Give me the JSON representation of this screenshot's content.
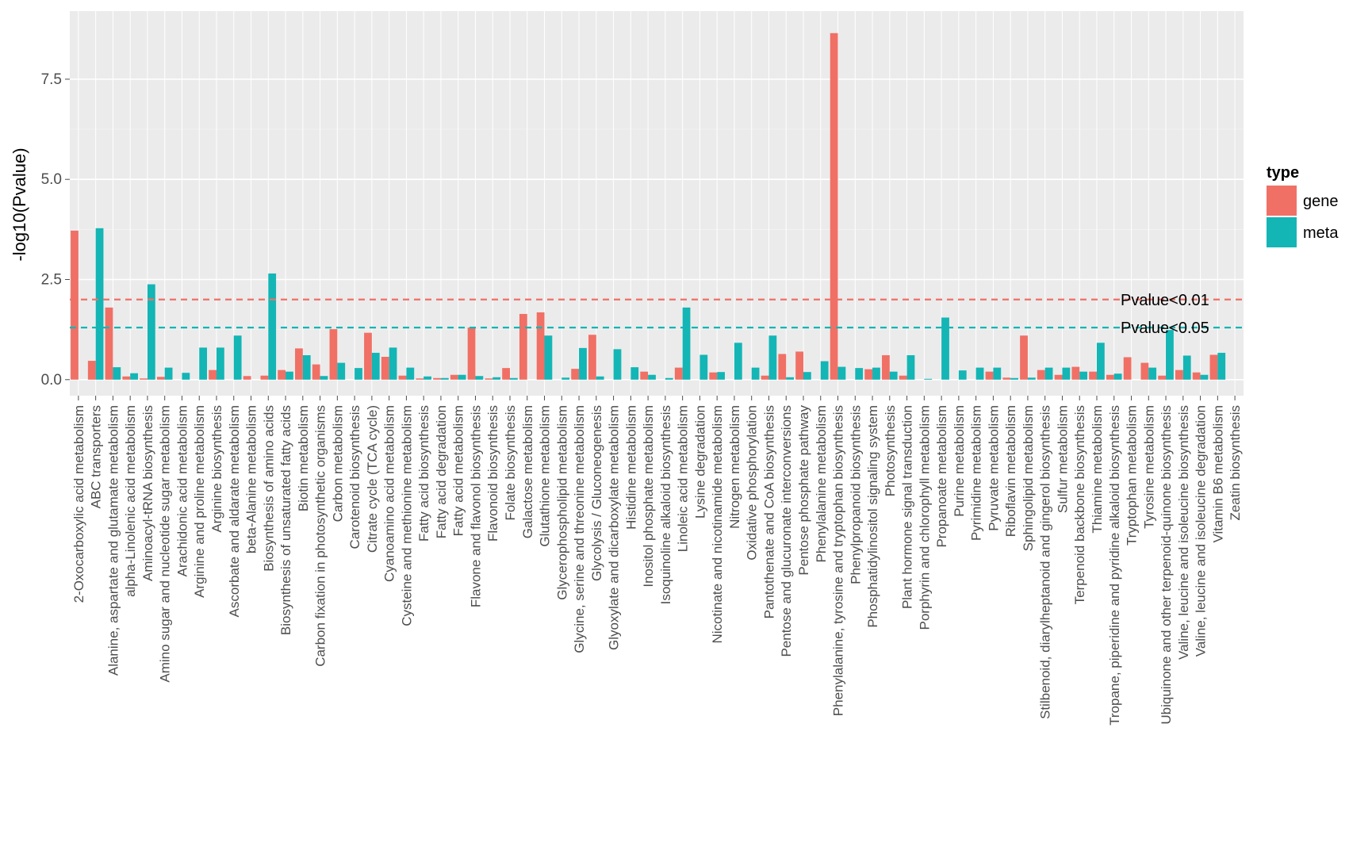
{
  "chart_data": {
    "type": "bar",
    "title": "",
    "xlabel": "",
    "ylabel": "-log10(Pvalue)",
    "ylim": [
      -0.4,
      9.2
    ],
    "yticks": [
      0.0,
      2.5,
      5.0,
      7.5
    ],
    "ytick_labels": [
      "0.0",
      "2.5",
      "5.0",
      "7.5"
    ],
    "legend": {
      "title": "type",
      "position": "right"
    },
    "colors": {
      "gene": "#F07066",
      "meta": "#14B5B5",
      "panel": "#EBEBEB"
    },
    "categories": [
      "2-Oxocarboxylic acid metabolism",
      "ABC transporters",
      "Alanine, aspartate and glutamate metabolism",
      "alpha-Linolenic acid metabolism",
      "Aminoacyl-tRNA biosynthesis",
      "Amino sugar and nucleotide sugar metabolism",
      "Arachidonic acid metabolism",
      "Arginine and proline metabolism",
      "Arginine biosynthesis",
      "Ascorbate and aldarate metabolism",
      "beta-Alanine metabolism",
      "Biosynthesis of amino acids",
      "Biosynthesis of unsaturated fatty acids",
      "Biotin metabolism",
      "Carbon fixation in photosynthetic organisms",
      "Carbon metabolism",
      "Carotenoid biosynthesis",
      "Citrate cycle (TCA cycle)",
      "Cyanoamino acid metabolism",
      "Cysteine and methionine metabolism",
      "Fatty acid biosynthesis",
      "Fatty acid degradation",
      "Fatty acid metabolism",
      "Flavone and flavonol biosynthesis",
      "Flavonoid biosynthesis",
      "Folate biosynthesis",
      "Galactose metabolism",
      "Glutathione metabolism",
      "Glycerophospholipid metabolism",
      "Glycine, serine and threonine metabolism",
      "Glycolysis / Gluconeogenesis",
      "Glyoxylate and dicarboxylate metabolism",
      "Histidine metabolism",
      "Inositol phosphate metabolism",
      "Isoquinoline alkaloid biosynthesis",
      "Linoleic acid metabolism",
      "Lysine degradation",
      "Nicotinate and nicotinamide metabolism",
      "Nitrogen metabolism",
      "Oxidative phosphorylation",
      "Pantothenate and CoA biosynthesis",
      "Pentose and glucuronate interconversions",
      "Pentose phosphate pathway",
      "Phenylalanine metabolism",
      "Phenylalanine, tyrosine and tryptophan biosynthesis",
      "Phenylpropanoid biosynthesis",
      "Phosphatidylinositol signaling system",
      "Photosynthesis",
      "Plant hormone signal transduction",
      "Porphyrin and chlorophyll metabolism",
      "Propanoate metabolism",
      "Purine metabolism",
      "Pyrimidine metabolism",
      "Pyruvate metabolism",
      "Riboflavin metabolism",
      "Sphingolipid metabolism",
      "Stilbenoid, diarylheptanoid and gingerol biosynthesis",
      "Sulfur metabolism",
      "Terpenoid backbone biosynthesis",
      "Thiamine metabolism",
      "Tropane, piperidine and pyridine alkaloid biosynthesis",
      "Tryptophan metabolism",
      "Tyrosine metabolism",
      "Ubiquinone and other terpenoid-quinone biosynthesis",
      "Valine, leucine and isoleucine biosynthesis",
      "Valine, leucine and isoleucine degradation",
      "Vitamin B6 metabolism",
      "Zeatin biosynthesis"
    ],
    "series": [
      {
        "name": "gene",
        "values": [
          3.72,
          0.47,
          1.8,
          0.08,
          0.03,
          0.07,
          0.0,
          0.0,
          0.24,
          0.0,
          0.09,
          0.1,
          0.24,
          0.78,
          0.38,
          1.26,
          0.0,
          1.17,
          0.57,
          0.1,
          0.03,
          0.04,
          0.12,
          1.3,
          0.03,
          0.29,
          1.64,
          1.68,
          0.0,
          0.27,
          1.12,
          0.0,
          0.0,
          0.2,
          0.0,
          0.3,
          0.0,
          0.18,
          0.0,
          0.0,
          0.1,
          0.64,
          0.7,
          0.0,
          8.65,
          0.0,
          0.26,
          0.61,
          0.1,
          0.0,
          0.0,
          0.0,
          0.0,
          0.2,
          0.05,
          1.1,
          0.24,
          0.12,
          0.32,
          0.2,
          0.12,
          0.56,
          0.42,
          0.1,
          0.24,
          0.18,
          0.62,
          0.0
        ]
      },
      {
        "name": "meta",
        "values": [
          0.0,
          3.78,
          0.31,
          0.16,
          2.38,
          0.3,
          0.17,
          0.8,
          0.8,
          1.1,
          0.0,
          2.65,
          0.2,
          0.61,
          0.09,
          0.42,
          0.29,
          0.67,
          0.8,
          0.3,
          0.08,
          0.04,
          0.12,
          0.09,
          0.06,
          0.04,
          0.0,
          1.1,
          0.05,
          0.79,
          0.08,
          0.76,
          0.31,
          0.12,
          0.04,
          1.8,
          0.62,
          0.19,
          0.92,
          0.3,
          1.1,
          0.06,
          0.19,
          0.46,
          0.32,
          0.29,
          0.3,
          0.2,
          0.61,
          0.02,
          1.55,
          0.23,
          0.3,
          0.3,
          0.04,
          0.05,
          0.3,
          0.3,
          0.2,
          0.92,
          0.15,
          0.0,
          0.3,
          1.24,
          0.6,
          0.12,
          0.67,
          0.0
        ]
      }
    ],
    "thresholds": [
      {
        "label": "Pvalue<0.01",
        "value": 2.0,
        "series": "gene"
      },
      {
        "label": "Pvalue<0.05",
        "value": 1.3,
        "series": "meta"
      }
    ]
  }
}
